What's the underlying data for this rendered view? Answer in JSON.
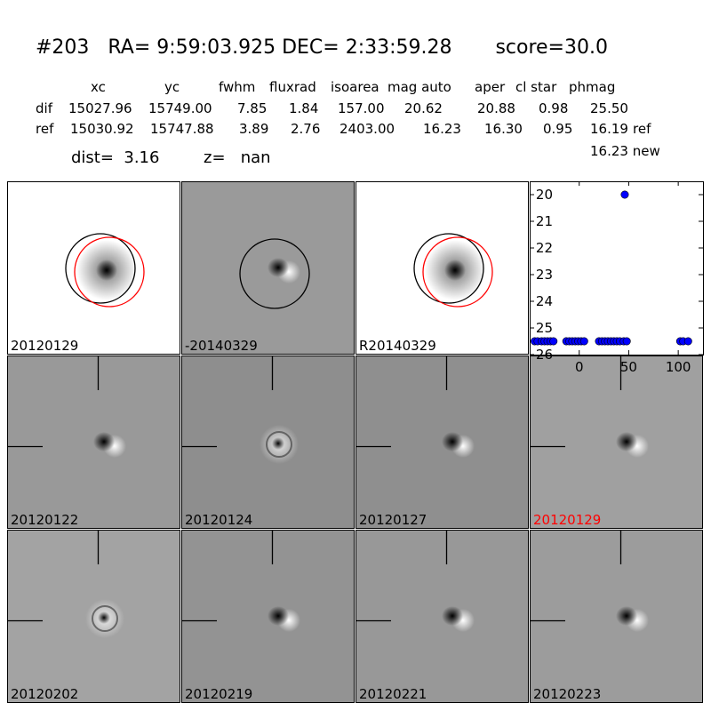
{
  "header": {
    "title": "#203   RA= 9:59:03.925 DEC= 2:33:59.28       score=30.0",
    "columns": [
      "xc",
      "yc",
      "fwhm",
      "fluxrad",
      "isoarea",
      "mag auto",
      "aper",
      "cl star",
      "phmag"
    ],
    "rows": [
      {
        "label": "dif",
        "values": [
          "15027.96",
          "15749.00",
          "7.85",
          "1.84",
          "157.00",
          "20.62",
          "20.88",
          "0.98",
          "25.50"
        ],
        "suffix": ""
      },
      {
        "label": "ref",
        "values": [
          "15030.92",
          "15747.88",
          "3.89",
          "2.76",
          "2403.00",
          "16.23",
          "16.30",
          "0.95",
          "16.19"
        ],
        "suffix": "ref"
      }
    ],
    "dist_text": "dist=  3.16",
    "z_text": "z=   nan",
    "new_text": "16.23 new"
  },
  "stamps": [
    {
      "label": "20120129",
      "type": "ref",
      "bg": "#ffffff",
      "circles": true,
      "crosshair": false,
      "red_label": false
    },
    {
      "label": "-20140329",
      "type": "diff",
      "bg": "#9a9a9a",
      "circles": "single",
      "crosshair": false,
      "red_label": false
    },
    {
      "label": "R20140329",
      "type": "ref",
      "bg": "#ffffff",
      "circles": true,
      "crosshair": false,
      "red_label": false
    },
    {
      "label": "20120122",
      "type": "diff",
      "bg": "#999999",
      "crosshair": true,
      "red_label": false
    },
    {
      "label": "20120124",
      "type": "ring",
      "bg": "#8e8e8e",
      "crosshair": true,
      "red_label": false
    },
    {
      "label": "20120127",
      "type": "diff",
      "bg": "#8f8f8f",
      "crosshair": true,
      "red_label": false
    },
    {
      "label": "20120129",
      "type": "diff",
      "bg": "#a0a0a0",
      "crosshair": true,
      "red_label": true
    },
    {
      "label": "20120202",
      "type": "ring",
      "bg": "#a3a3a3",
      "crosshair": true,
      "red_label": false
    },
    {
      "label": "20120219",
      "type": "diff",
      "bg": "#939393",
      "crosshair": true,
      "red_label": false
    },
    {
      "label": "20120221",
      "type": "diff",
      "bg": "#989898",
      "crosshair": true,
      "red_label": false
    },
    {
      "label": "20120223",
      "type": "diff",
      "bg": "#9c9c9c",
      "crosshair": true,
      "red_label": false
    }
  ],
  "colors": {
    "marker": "#0000ff",
    "red": "#ff0000"
  },
  "chart_data": {
    "type": "scatter",
    "title": "",
    "xlabel": "",
    "ylabel": "",
    "xlim": [
      -50,
      125
    ],
    "ylim": [
      26,
      19.5
    ],
    "xticks": [
      "0",
      "50",
      "100"
    ],
    "yticks": [
      "20",
      "21",
      "22",
      "23",
      "24",
      "25",
      "26"
    ],
    "y_inverted": true,
    "series": [
      {
        "x": [
          -45,
          -42,
          -38,
          -35,
          -32,
          -29,
          -26,
          -13,
          -10,
          -7,
          -4,
          -1,
          2,
          5,
          20,
          23,
          26,
          29,
          32,
          35,
          38,
          41,
          45,
          48,
          102,
          105,
          110
        ],
        "y": [
          25.5,
          25.5,
          25.5,
          25.5,
          25.5,
          25.5,
          25.5,
          25.5,
          25.5,
          25.5,
          25.5,
          25.5,
          25.5,
          25.5,
          25.5,
          25.5,
          25.5,
          25.5,
          25.5,
          25.5,
          25.5,
          25.5,
          25.5,
          25.5,
          25.5,
          25.5,
          25.5
        ]
      },
      {
        "x": [
          46
        ],
        "y": [
          20.0
        ]
      }
    ]
  }
}
